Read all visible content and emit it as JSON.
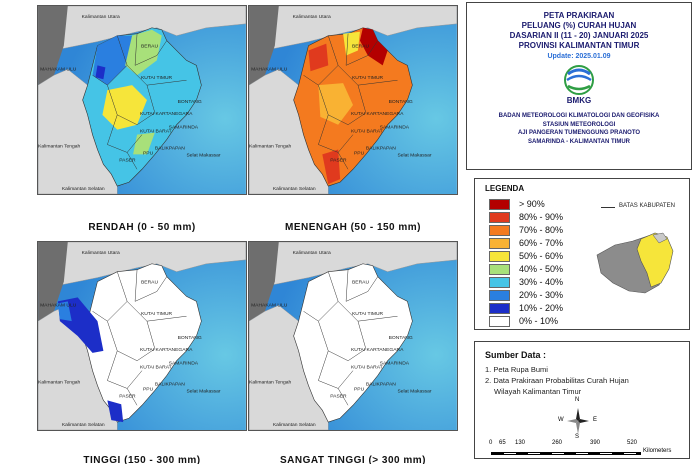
{
  "maps": [
    {
      "caption": "RENDAH (0 - 50 mm)",
      "fill": "rendah"
    },
    {
      "caption": "MENENGAH (50 - 150 mm)",
      "fill": "menengah"
    },
    {
      "caption": "TINGGI (150 - 300 mm)",
      "fill": "tinggi"
    },
    {
      "caption": "SANGAT TINGGI (> 300 mm)",
      "fill": "sangat"
    }
  ],
  "region_labels": {
    "kaltara": "Kalimantan Utara",
    "mahakam_ulu": "MAHAKAM ULU",
    "berau": "BERAU",
    "kutai_timur": "KUTAI TIMUR",
    "bontang": "BONTANG",
    "kutai_kartanegara": "KUTAI KARTANEGARA",
    "kutai_barat": "KUTAI BARAT",
    "samarinda": "SAMARINDA",
    "kalteng": "Kalimantan Tengah",
    "paser": "PASER",
    "ppu": "PPU",
    "balikpapan": "BALIKPAPAN",
    "selat": "Selat Makassar",
    "kalsel": "Kalimantan Selatan"
  },
  "title": {
    "line1": "PETA PRAKIRAAN",
    "line2": "PELUANG (%) CURAH HUJAN",
    "line3": "DASARIAN II (11 - 20) JANUARI 2025",
    "line4": "PROVINSI KALIMANTAN TIMUR",
    "update": "Update: 2025.01.09"
  },
  "logo_text": "BMKG",
  "agency": {
    "line1": "BADAN METEOROLOGI KLIMATOLOGI DAN GEOFISIKA",
    "line2": "STASIUN METEOROLOGI",
    "line3": "AJI PANGERAN TUMENGGUNG PRANOTO",
    "line4": "SAMARINDA - KALIMANTAN TIMUR"
  },
  "legend": {
    "title": "LEGENDA",
    "boundary_label": "BATAS KABUPATEN",
    "items": [
      {
        "label": "> 90%",
        "color": "#b30000"
      },
      {
        "label": "80% - 90%",
        "color": "#e03a1e"
      },
      {
        "label": "70% - 80%",
        "color": "#f47a1f"
      },
      {
        "label": "60% - 70%",
        "color": "#f9b233"
      },
      {
        "label": "50% - 60%",
        "color": "#f6e53a"
      },
      {
        "label": "40% - 50%",
        "color": "#a8e07a"
      },
      {
        "label": "30% - 40%",
        "color": "#45c4e6"
      },
      {
        "label": "20% - 30%",
        "color": "#2a7fe0"
      },
      {
        "label": "10% - 20%",
        "color": "#1c2ec8"
      },
      {
        "label": "0% - 10%",
        "color": "#ffffff"
      }
    ]
  },
  "sources": {
    "title": "Sumber Data :",
    "item1": "1. Peta Rupa Bumi",
    "item2a": "2. Data Prakiraan Probabilitas Curah Hujan",
    "item2b": "Wilayah Kalimantan Timur"
  },
  "compass": {
    "n": "N",
    "s": "S",
    "e": "E",
    "w": "W"
  },
  "scale": {
    "ticks": [
      "0",
      "65",
      "130",
      "260",
      "390",
      "520"
    ],
    "unit": "Kilometers"
  },
  "colors": {
    "sea_deep": "#2f86d6",
    "sea_light": "#67c8e4",
    "land_grey": "#6e6e6e",
    "land_light": "#d9d9d9"
  }
}
